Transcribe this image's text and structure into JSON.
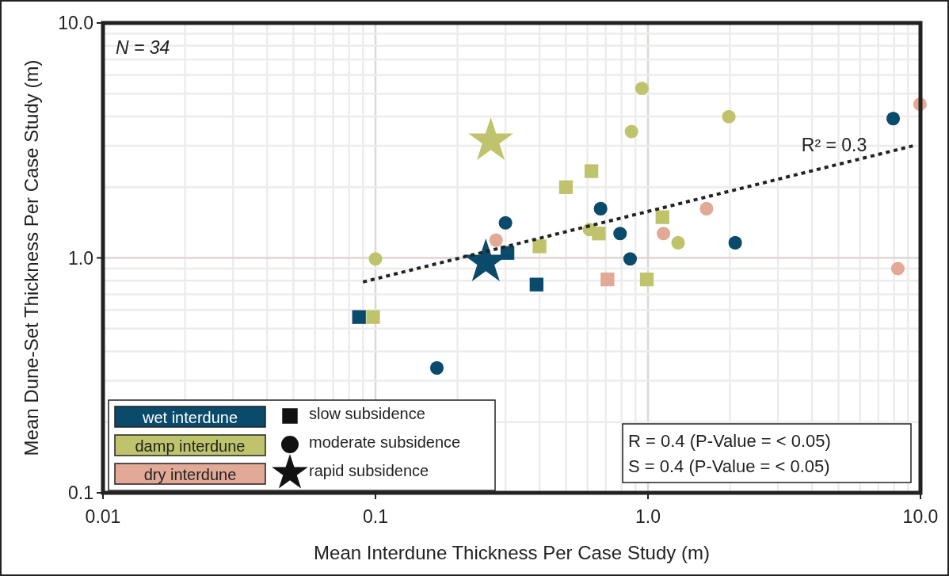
{
  "chart_data": {
    "type": "scatter",
    "xlabel": "Mean Interdune Thickness Per Case Study (m)",
    "ylabel": "Mean Dune-Set Thickness Per Case Study (m)",
    "log": "xy",
    "grid": true,
    "legend": "bottom left",
    "xlim": [
      0.01,
      10
    ],
    "ylim": [
      0.1,
      10
    ],
    "xticks": [
      0.01,
      0.1,
      {
        "value": 1,
        "label": "1.0"
      },
      {
        "value": 10,
        "label": "10.0"
      }
    ],
    "yticks": [
      0.1,
      {
        "value": 1,
        "label": "1.0"
      },
      {
        "value": 10,
        "label": "10.0"
      }
    ],
    "series": [
      {
        "name": "wet interdune",
        "color": "#0a4a6b",
        "marker": "square",
        "x": [
          0.087,
          0.305,
          0.39
        ],
        "values": [
          0.56,
          1.05,
          0.77
        ]
      },
      {
        "color": "#0a4a6b",
        "marker": "circle",
        "x": [
          0.168,
          0.3,
          0.67,
          0.79,
          0.86,
          2.09,
          7.94
        ],
        "values": [
          0.34,
          1.41,
          1.62,
          1.27,
          0.99,
          1.16,
          3.92
        ]
      },
      {
        "color": "#0a4a6b",
        "marker": "star",
        "x": [
          0.254
        ],
        "values": [
          0.96
        ]
      },
      {
        "name": "damp interdune",
        "color": "#bfc46c",
        "marker": "square",
        "x": [
          0.098,
          0.4,
          0.5,
          0.62,
          0.66,
          0.99,
          1.13
        ],
        "values": [
          0.56,
          1.12,
          2.0,
          2.34,
          1.27,
          0.81,
          1.49
        ]
      },
      {
        "color": "#bfc46c",
        "marker": "circle",
        "x": [
          0.1,
          0.61,
          0.87,
          0.95,
          1.29,
          1.98
        ],
        "values": [
          0.99,
          1.32,
          3.45,
          5.27,
          1.16,
          3.99
        ]
      },
      {
        "color": "#bfc46c",
        "marker": "star",
        "x": [
          0.265
        ],
        "values": [
          3.15
        ]
      },
      {
        "name": "dry interdune",
        "color": "#e2a996",
        "marker": "square",
        "x": [
          0.71
        ],
        "values": [
          0.81
        ]
      },
      {
        "color": "#e2a996",
        "marker": "circle",
        "x": [
          0.277,
          1.14,
          1.64,
          8.26,
          9.96
        ],
        "values": [
          1.19,
          1.27,
          1.62,
          0.9,
          4.51
        ]
      },
      {
        "type": "line",
        "color": "#222222",
        "line_style": "dotted",
        "marker": "none",
        "x": [
          0.09,
          9.4
        ],
        "values": [
          0.79,
          3.0
        ]
      }
    ],
    "annotations": [
      "N = 34",
      "R² = 0.3",
      "slow subsidence",
      "moderate subsidence",
      "rapid subsidence",
      "R = 0.4 (P-Value = < 0.05)",
      "S = 0.4 (P-Value = < 0.05)"
    ]
  }
}
